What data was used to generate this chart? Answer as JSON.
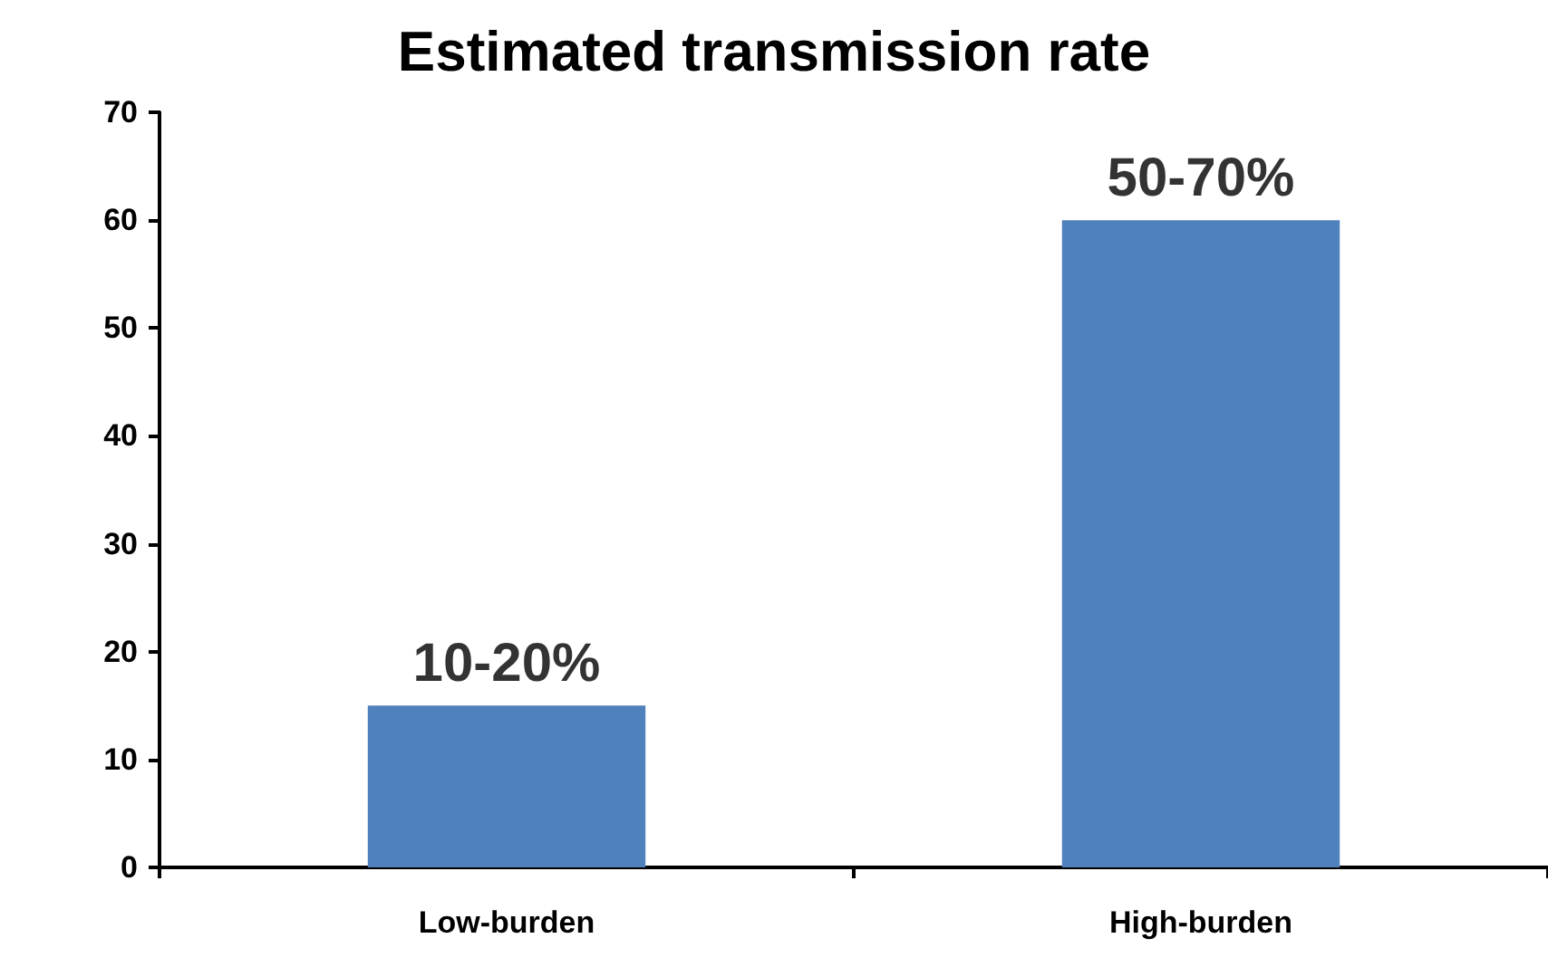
{
  "chart_data": {
    "type": "bar",
    "title": "Estimated transmission rate",
    "categories": [
      "Low-burden",
      "High-burden"
    ],
    "values": [
      15,
      60
    ],
    "annotations": [
      {
        "text": "10-20%",
        "x": "Low-burden",
        "y": 15
      },
      {
        "text": "50-70%",
        "x": "High-burden",
        "y": 60
      }
    ],
    "color": "#4f81bd",
    "ylim": [
      0,
      70
    ],
    "yticks": [
      0,
      10,
      20,
      30,
      40,
      50,
      60,
      70
    ],
    "grid": false
  }
}
